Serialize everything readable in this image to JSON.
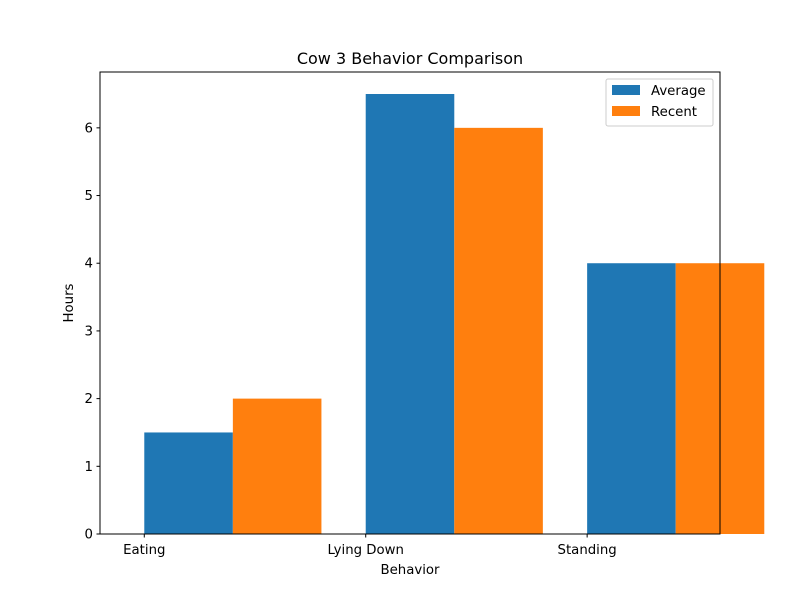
{
  "chart_data": {
    "type": "bar",
    "title": "Cow 3 Behavior Comparison",
    "xlabel": "Behavior",
    "ylabel": "Hours",
    "categories": [
      "Eating",
      "Lying Down",
      "Standing"
    ],
    "series": [
      {
        "name": "Average",
        "values": [
          1.5,
          6.5,
          4.0
        ],
        "color": "#1f77b4"
      },
      {
        "name": "Recent",
        "values": [
          2.0,
          6.0,
          4.0
        ],
        "color": "#ff7f0e"
      }
    ],
    "ylim": [
      0,
      6.825
    ],
    "yticks": [
      "0",
      "1",
      "2",
      "3",
      "4",
      "5",
      "6"
    ],
    "grid": false,
    "legend_position": "top-right"
  }
}
